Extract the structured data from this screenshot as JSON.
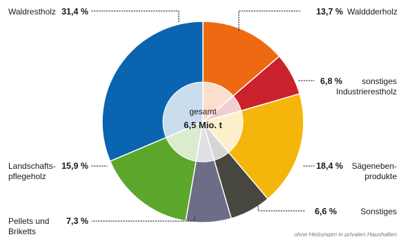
{
  "chart_data": {
    "type": "pie",
    "center_label": "gesamt",
    "center_value": "6,5 Mio. t",
    "footnote": "ohne Heizungen in privaten Haushalten",
    "slices": [
      {
        "label_lines": [
          "Walddderholz"
        ],
        "value": 13.7,
        "value_text": "13,7 %",
        "color": "#ee6a12"
      },
      {
        "label_lines": [
          "sonstiges",
          "Industrierestholz"
        ],
        "value": 6.8,
        "value_text": "6,8 %",
        "color": "#c9222c"
      },
      {
        "label_lines": [
          "Sägeneben-",
          "produkte"
        ],
        "value": 18.4,
        "value_text": "18,4 %",
        "color": "#f6b50a"
      },
      {
        "label_lines": [
          "Sonstiges"
        ],
        "value": 6.6,
        "value_text": "6,6 %",
        "color": "#48473f"
      },
      {
        "label_lines": [
          "Pellets und",
          "Briketts"
        ],
        "value": 7.3,
        "value_text": "7,3 %",
        "color": "#6d6d87"
      },
      {
        "label_lines": [
          "Landschafts-",
          "pflegeholz"
        ],
        "value": 15.9,
        "value_text": "15,9 %",
        "color": "#5ca62c"
      },
      {
        "label_lines": [
          "Waldrestholz"
        ],
        "value": 31.4,
        "value_text": "31,4 %",
        "color": "#0a64b0"
      }
    ]
  }
}
